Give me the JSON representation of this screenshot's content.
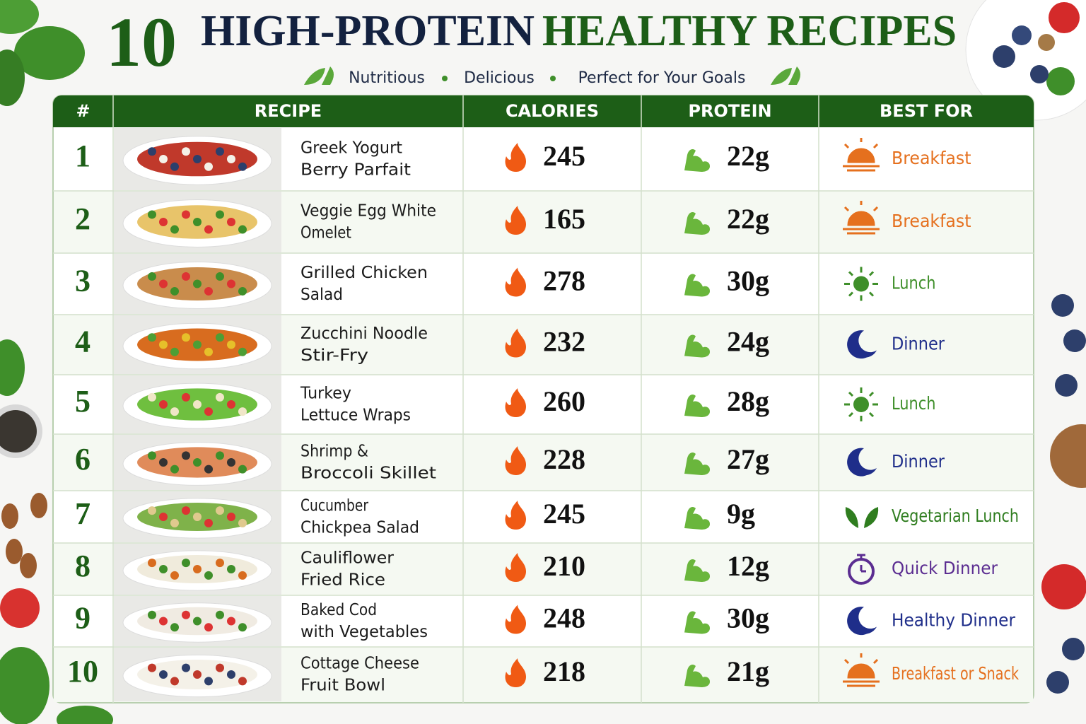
{
  "header": {
    "number": "10",
    "title_dark": "HIGH-PROTEIN",
    "title_green": "HEALTHY RECIPES",
    "subtitle": [
      "Nutritious",
      "Delicious",
      "Perfect for Your Goals"
    ]
  },
  "table": {
    "columns": [
      "#",
      "RECIPE",
      "CALORIES",
      "PROTEIN",
      "BEST FOR"
    ],
    "rows": [
      {
        "number": "1",
        "recipe": [
          "Greek Yogurt",
          "Berry Parfait"
        ],
        "calories": "245",
        "protein": "22g",
        "best_for": "Breakfast"
      },
      {
        "number": "2",
        "recipe": [
          "Veggie Egg White",
          "Omelet"
        ],
        "calories": "165",
        "protein": "22g",
        "best_for": "Breakfast"
      },
      {
        "number": "3",
        "recipe": [
          "Grilled Chicken",
          "Salad"
        ],
        "calories": "278",
        "protein": "30g",
        "best_for": "Lunch"
      },
      {
        "number": "4",
        "recipe": [
          "Zucchini Noodle",
          "Stir-Fry"
        ],
        "calories": "232",
        "protein": "24g",
        "best_for": "Dinner"
      },
      {
        "number": "5",
        "recipe": [
          "Turkey",
          "Lettuce Wraps"
        ],
        "calories": "260",
        "protein": "28g",
        "best_for": "Lunch"
      },
      {
        "number": "6",
        "recipe": [
          "Shrimp &",
          "Broccoli Skillet"
        ],
        "calories": "228",
        "protein": "27g",
        "best_for": "Dinner"
      },
      {
        "number": "7",
        "recipe": [
          "Cucumber",
          "Chickpea Salad"
        ],
        "calories": "245",
        "protein": "9g",
        "best_for": "Vegetarian Lunch"
      },
      {
        "number": "8",
        "recipe": [
          "Cauliflower",
          "Fried Rice"
        ],
        "calories": "210",
        "protein": "12g",
        "best_for": "Quick Dinner"
      },
      {
        "number": "9",
        "recipe": [
          "Baked Cod",
          "with Vegetables"
        ],
        "calories": "248",
        "protein": "30g",
        "best_for": "Healthy Dinner"
      },
      {
        "number": "10",
        "recipe": [
          "Cottage Cheese",
          "Fruit Bowl"
        ],
        "calories": "218",
        "protein": "21g",
        "best_for": "Breakfast or Snack"
      }
    ]
  }
}
